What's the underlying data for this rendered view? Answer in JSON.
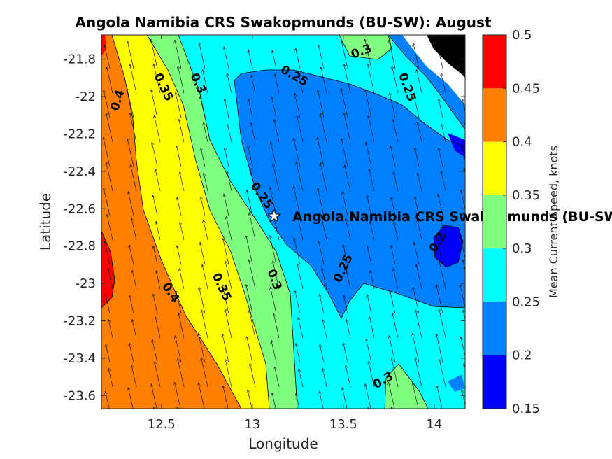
{
  "chart_data": {
    "type": "contour",
    "title": "Angola Namibia CRS Swakopmunds (BU-SW): August",
    "xlabel": "Longitude",
    "ylabel": "Latitude",
    "xlim": [
      12.17,
      14.17
    ],
    "ylim": [
      -23.67,
      -21.67
    ],
    "xticks": [
      12.5,
      13,
      13.5,
      14
    ],
    "xtick_labels": [
      "12.5",
      "13",
      "13.5",
      "14"
    ],
    "yticks": [
      -21.8,
      -22,
      -22.2,
      -22.4,
      -22.6,
      -22.8,
      -23,
      -23.2,
      -23.4,
      -23.6
    ],
    "ytick_labels": [
      "-21.8",
      "-22",
      "-22.2",
      "-22.4",
      "-22.6",
      "-22.8",
      "-23",
      "-23.2",
      "-23.4",
      "-23.6"
    ],
    "colorbar": {
      "label": "Mean Current Speed, knots",
      "levels": [
        0.15,
        0.2,
        0.25,
        0.3,
        0.35,
        0.4,
        0.45,
        0.5
      ],
      "tick_labels": [
        "0.15",
        "0.2",
        "0.25",
        "0.3",
        "0.35",
        "0.4",
        "0.45",
        "0.5"
      ],
      "colors": [
        "#0000ff",
        "#0080ff",
        "#00ffff",
        "#80ff80",
        "#ffff00",
        "#ff8000",
        "#ff0000"
      ]
    },
    "contour_labels": [
      {
        "text": "0.4",
        "x": 12.26,
        "y": -22.02,
        "angle": -72
      },
      {
        "text": "0.35",
        "x": 12.51,
        "y": -21.95,
        "angle": 65
      },
      {
        "text": "0.3",
        "x": 12.7,
        "y": -21.93,
        "angle": 65
      },
      {
        "text": "0.25",
        "x": 13.23,
        "y": -21.89,
        "angle": 30
      },
      {
        "text": "0.3",
        "x": 13.6,
        "y": -21.76,
        "angle": -20
      },
      {
        "text": "0.25",
        "x": 13.85,
        "y": -21.95,
        "angle": 70
      },
      {
        "text": "0.25",
        "x": 13.05,
        "y": -22.53,
        "angle": 55
      },
      {
        "text": "0.2",
        "x": 14.02,
        "y": -22.78,
        "angle": -60
      },
      {
        "text": "0.25",
        "x": 13.5,
        "y": -22.92,
        "angle": -65
      },
      {
        "text": "0.3",
        "x": 13.12,
        "y": -22.98,
        "angle": 70
      },
      {
        "text": "0.35",
        "x": 12.83,
        "y": -23.02,
        "angle": 65
      },
      {
        "text": "0.4",
        "x": 12.55,
        "y": -23.05,
        "angle": 55
      },
      {
        "text": "0.3",
        "x": 13.72,
        "y": -23.52,
        "angle": -30
      }
    ],
    "station": {
      "name": "Angola Namibia CRS Swakopmunds (BU-SW)",
      "lon": 13.12,
      "lat": -22.64
    },
    "quiver": {
      "mean_direction": "north-northwest",
      "mean_speed_knots": 0.3
    },
    "land_color": "#000000"
  }
}
